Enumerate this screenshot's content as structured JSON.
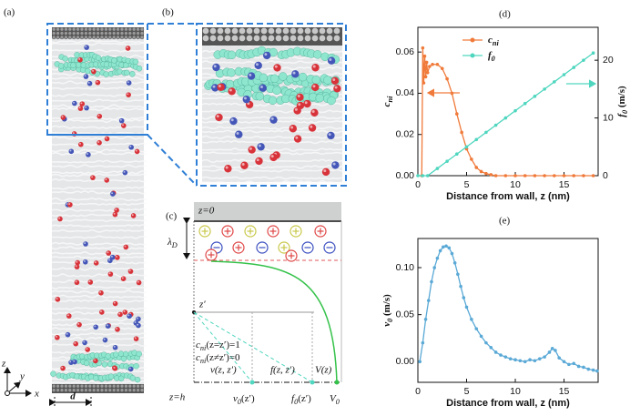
{
  "panels": {
    "a": "(a)",
    "b": "(b)",
    "c": "(c)",
    "d": "(d)",
    "e": "(e)"
  },
  "panel_a": {
    "width_label": "d",
    "axes": {
      "z": "z",
      "y": "y",
      "x": "x"
    }
  },
  "schematic": {
    "top": "z=0",
    "bottom": "z=h",
    "debye": {
      "text": "λ",
      "sub": "D"
    },
    "z_prime": "z′",
    "cni_eq": {
      "text": "c",
      "sub": "ni",
      "rest": "(z=z′)=1"
    },
    "cni_neq": {
      "text": "c",
      "sub": "ni",
      "rest": "(z≠z′)=0"
    },
    "v_label": "v(z, z′)",
    "f_label": "f(z, z′)",
    "V_label": "V(z)",
    "v0": {
      "text": "v",
      "sub": "0",
      "rest": "(z′)"
    },
    "f0": {
      "text": "f",
      "sub": "0",
      "rest": "(z′)"
    },
    "V0": {
      "text": "V",
      "sub": "0"
    }
  },
  "chart_data": [
    {
      "type": "line",
      "xlabel": "Distance from wall, z (nm)",
      "ylabel": {
        "text": "c",
        "sub": "ni"
      },
      "y2label": {
        "text": "f",
        "sub": "0",
        "rest": " (m/s)"
      },
      "xlim": [
        0,
        18.5
      ],
      "xticks": [
        0,
        5,
        10,
        15
      ],
      "ylim": [
        0,
        0.072
      ],
      "yticks": [
        {
          "value": 0,
          "label": "0.00"
        },
        0.02,
        0.04,
        0.06
      ],
      "y2lim": [
        0,
        25.7
      ],
      "y2ticks": [
        0,
        10,
        20
      ],
      "series": [
        {
          "name": {
            "text": "c",
            "sub": "ni"
          },
          "color": "#f07a3a",
          "x": [
            0.4,
            0.5,
            0.6,
            0.7,
            0.8,
            0.9,
            1.0,
            1.2,
            1.5,
            2,
            2.5,
            3,
            3.5,
            4,
            4.5,
            5,
            5.5,
            6,
            6.5,
            7,
            7.5,
            8,
            9,
            10,
            11,
            12,
            13,
            14,
            15,
            16,
            17,
            18
          ],
          "values": [
            0,
            0.062,
            0.045,
            0.058,
            0.048,
            0.055,
            0.05,
            0.053,
            0.054,
            0.054,
            0.052,
            0.047,
            0.04,
            0.03,
            0.021,
            0.013,
            0.008,
            0.004,
            0.002,
            0.001,
            0.0005,
            0,
            0,
            0,
            0,
            0,
            0,
            0,
            0,
            0,
            0,
            0
          ]
        },
        {
          "name": {
            "text": "f",
            "sub": "0"
          },
          "color": "#4fd6bf",
          "axis": "y2",
          "x": [
            0,
            0.5,
            1,
            2,
            3,
            4,
            5,
            6,
            7,
            8,
            9,
            10,
            11,
            12,
            13,
            14,
            15,
            16,
            17,
            18
          ],
          "values": [
            0,
            0,
            0,
            1.25,
            2.5,
            3.75,
            5,
            6.25,
            7.5,
            8.75,
            10,
            11.25,
            12.5,
            13.75,
            15,
            16.25,
            17.5,
            18.75,
            20,
            21.25
          ]
        }
      ]
    },
    {
      "type": "line",
      "xlabel": "Distance from wall, z (nm)",
      "ylabel": {
        "text": "v",
        "sub": "0",
        "rest": " (m/s)"
      },
      "xlim": [
        0,
        18.5
      ],
      "xticks": [
        0,
        5,
        10,
        15
      ],
      "ylim": [
        -0.022,
        0.131
      ],
      "yticks": [
        {
          "value": 0,
          "label": "0.00"
        },
        0.05,
        {
          "value": 0.1,
          "label": "0.10"
        }
      ],
      "series": [
        {
          "color": "#5aa9d6",
          "x": [
            0.2,
            0.5,
            0.8,
            1.1,
            1.4,
            1.7,
            2.0,
            2.3,
            2.6,
            2.9,
            3.2,
            3.5,
            3.8,
            4.1,
            4.4,
            4.7,
            5.0,
            5.5,
            6.0,
            6.5,
            7.0,
            7.5,
            8.0,
            8.5,
            9,
            9.5,
            10,
            10.5,
            11,
            11.5,
            12,
            12.5,
            13,
            13.5,
            13.8,
            14.1,
            14.5,
            15,
            15.5,
            16,
            16.5,
            17,
            17.5,
            18,
            18.4
          ],
          "values": [
            0.0,
            0.02,
            0.045,
            0.065,
            0.085,
            0.1,
            0.11,
            0.118,
            0.122,
            0.123,
            0.121,
            0.115,
            0.105,
            0.093,
            0.08,
            0.068,
            0.058,
            0.045,
            0.035,
            0.027,
            0.02,
            0.015,
            0.01,
            0.007,
            0.005,
            0.003,
            0.002,
            0.001,
            0.0,
            0.002,
            0.001,
            0.003,
            0.005,
            0.01,
            0.014,
            0.012,
            0.004,
            0.0,
            -0.003,
            -0.002,
            -0.005,
            -0.006,
            -0.008,
            -0.009,
            -0.01
          ]
        }
      ]
    }
  ]
}
